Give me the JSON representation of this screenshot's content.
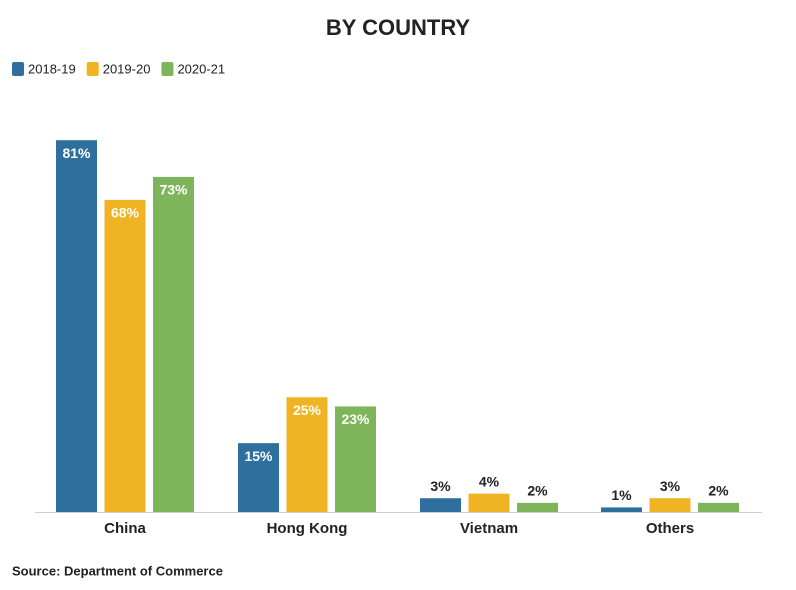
{
  "chart_data": {
    "type": "bar",
    "title": "BY COUNTRY",
    "categories": [
      "China",
      "Hong Kong",
      "Vietnam",
      "Others"
    ],
    "series": [
      {
        "name": "2018-19",
        "color": "#2e6f9e",
        "values": [
          81,
          15,
          3,
          1
        ],
        "value_labels": [
          "81%",
          "15%",
          "3%",
          "1%"
        ]
      },
      {
        "name": "2019-20",
        "color": "#f0b323",
        "values": [
          68,
          25,
          4,
          3
        ],
        "value_labels": [
          "68%",
          "25%",
          "4%",
          "3%"
        ]
      },
      {
        "name": "2020-21",
        "color": "#7fb55a",
        "values": [
          73,
          23,
          2,
          2
        ],
        "value_labels": [
          "73%",
          "23%",
          "2%",
          "2%"
        ]
      }
    ],
    "source": "Source: Department of Commerce"
  }
}
